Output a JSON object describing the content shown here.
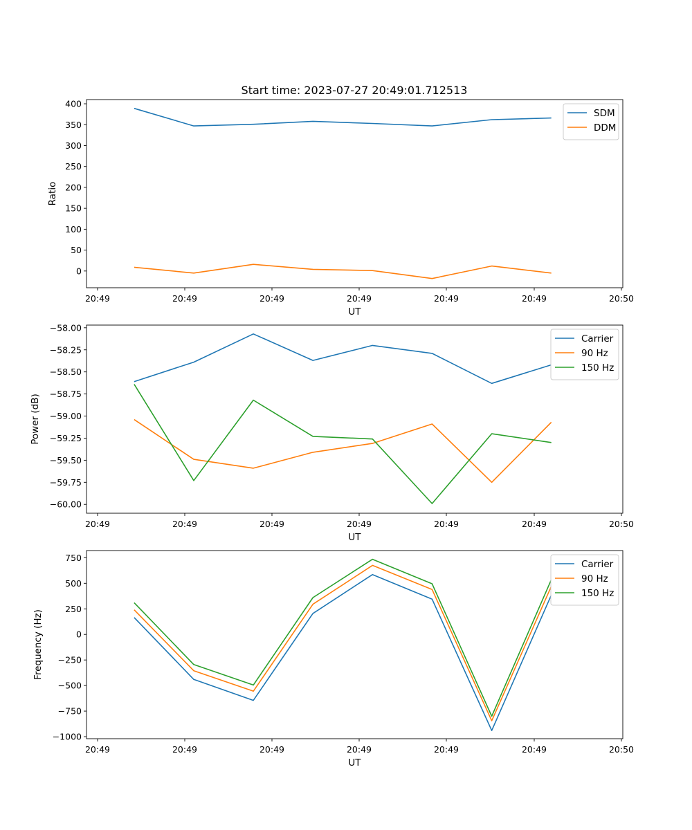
{
  "figure": {
    "title": "Start time: 2023-07-27 20:49:01.712513"
  },
  "chart_data": [
    {
      "type": "line",
      "title": "Start time: 2023-07-27 20:49:01.712513",
      "xlabel": "UT",
      "ylabel": "Ratio",
      "x_tick_labels": [
        "20:49",
        "20:49",
        "20:49",
        "20:49",
        "20:49",
        "20:49",
        "20:50"
      ],
      "x": [
        1,
        2,
        3,
        4,
        5,
        6,
        7,
        8
      ],
      "xlim": [
        0.2,
        9.2
      ],
      "y_ticks": [
        0,
        50,
        100,
        150,
        200,
        250,
        300,
        350,
        400
      ],
      "ylim": [
        -40,
        410
      ],
      "legend_position": "top-right",
      "series": [
        {
          "name": "SDM",
          "color": "#1f77b4",
          "values": [
            389,
            347,
            351,
            358,
            353,
            347,
            362,
            366
          ]
        },
        {
          "name": "DDM",
          "color": "#ff7f0e",
          "values": [
            9,
            -5,
            16,
            4,
            1,
            -18,
            12,
            -5
          ]
        }
      ]
    },
    {
      "type": "line",
      "title": "",
      "xlabel": "UT",
      "ylabel": "Power (dB)",
      "x_tick_labels": [
        "20:49",
        "20:49",
        "20:49",
        "20:49",
        "20:49",
        "20:49",
        "20:50"
      ],
      "x": [
        1,
        2,
        3,
        4,
        5,
        6,
        7,
        8
      ],
      "xlim": [
        0.2,
        9.2
      ],
      "y_ticks": [
        -60.0,
        -59.75,
        -59.5,
        -59.25,
        -59.0,
        -58.75,
        -58.5,
        -58.25,
        -58.0
      ],
      "y_tick_labels": [
        "−60.00",
        "−59.75",
        "−59.50",
        "−59.25",
        "−59.00",
        "−58.75",
        "−58.50",
        "−58.25",
        "−58.00"
      ],
      "ylim": [
        -60.1,
        -57.97
      ],
      "legend_position": "top-right",
      "series": [
        {
          "name": "Carrier",
          "color": "#1f77b4",
          "values": [
            -58.61,
            -58.39,
            -58.07,
            -58.37,
            -58.2,
            -58.29,
            -58.63,
            -58.42
          ]
        },
        {
          "name": "90 Hz",
          "color": "#ff7f0e",
          "values": [
            -59.04,
            -59.49,
            -59.59,
            -59.41,
            -59.31,
            -59.09,
            -59.75,
            -59.07
          ]
        },
        {
          "name": "150 Hz",
          "color": "#2ca02c",
          "values": [
            -58.64,
            -59.73,
            -58.82,
            -59.23,
            -59.26,
            -59.99,
            -59.2,
            -59.3
          ]
        }
      ]
    },
    {
      "type": "line",
      "title": "",
      "xlabel": "UT",
      "ylabel": "Frequency (Hz)",
      "x_tick_labels": [
        "20:49",
        "20:49",
        "20:49",
        "20:49",
        "20:49",
        "20:49",
        "20:50"
      ],
      "x": [
        1,
        2,
        3,
        4,
        5,
        6,
        7,
        8
      ],
      "xlim": [
        0.2,
        9.2
      ],
      "y_ticks": [
        -1000,
        -750,
        -500,
        -250,
        0,
        250,
        500,
        750
      ],
      "y_tick_labels": [
        "−1000",
        "−750",
        "−500",
        "−250",
        "0",
        "250",
        "500",
        "750"
      ],
      "ylim": [
        -1020,
        820
      ],
      "legend_position": "top-right",
      "series": [
        {
          "name": "Carrier",
          "color": "#1f77b4",
          "values": [
            165,
            -440,
            -645,
            205,
            585,
            345,
            -940,
            385
          ]
        },
        {
          "name": "90 Hz",
          "color": "#ff7f0e",
          "values": [
            240,
            -355,
            -555,
            295,
            675,
            440,
            -845,
            470
          ]
        },
        {
          "name": "150 Hz",
          "color": "#2ca02c",
          "values": [
            310,
            -295,
            -495,
            360,
            735,
            495,
            -800,
            535
          ]
        }
      ]
    }
  ]
}
